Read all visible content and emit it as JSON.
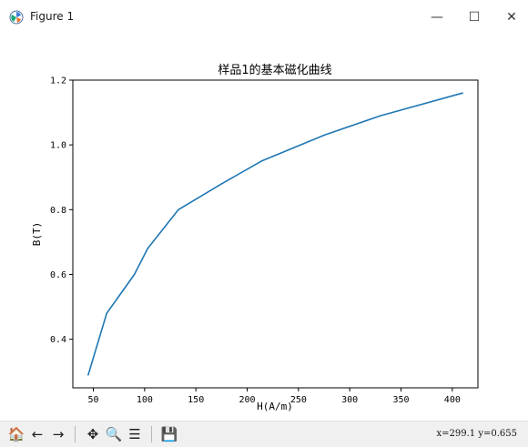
{
  "window": {
    "title": "Figure 1",
    "app_icon": "matplotlib-icon",
    "minimize_symbol": "—",
    "maximize_symbol": "☐",
    "close_symbol": "✕"
  },
  "toolbar": {
    "tools": [
      {
        "name": "home-icon",
        "symbol": "🏠"
      },
      {
        "name": "back-arrow-icon",
        "symbol": "←"
      },
      {
        "name": "forward-arrow-icon",
        "symbol": "→"
      },
      {
        "name": "pan-icon",
        "symbol": "✥"
      },
      {
        "name": "zoom-icon",
        "symbol": "🔍"
      },
      {
        "name": "configure-subplots-icon",
        "symbol": "☰"
      },
      {
        "name": "save-icon",
        "symbol": "💾"
      }
    ],
    "coordinates": "x=299.1 y=0.655"
  },
  "chart_data": {
    "type": "line",
    "title": "样品1的基本磁化曲线",
    "xlabel": "H(A/m)",
    "ylabel": "B(T)",
    "x": [
      45,
      63,
      90,
      103,
      133,
      175,
      214,
      275,
      330,
      410
    ],
    "y": [
      0.29,
      0.48,
      0.6,
      0.68,
      0.8,
      0.88,
      0.95,
      1.03,
      1.09,
      1.16
    ],
    "xlim": [
      30,
      425
    ],
    "ylim": [
      0.25,
      1.2
    ],
    "xticks": [
      "50",
      "100",
      "150",
      "200",
      "250",
      "300",
      "350",
      "400"
    ],
    "yticks": [
      "0.4",
      "0.6",
      "0.8",
      "1.0",
      "1.2"
    ],
    "line_color": "#1f77b4",
    "grid": false
  }
}
